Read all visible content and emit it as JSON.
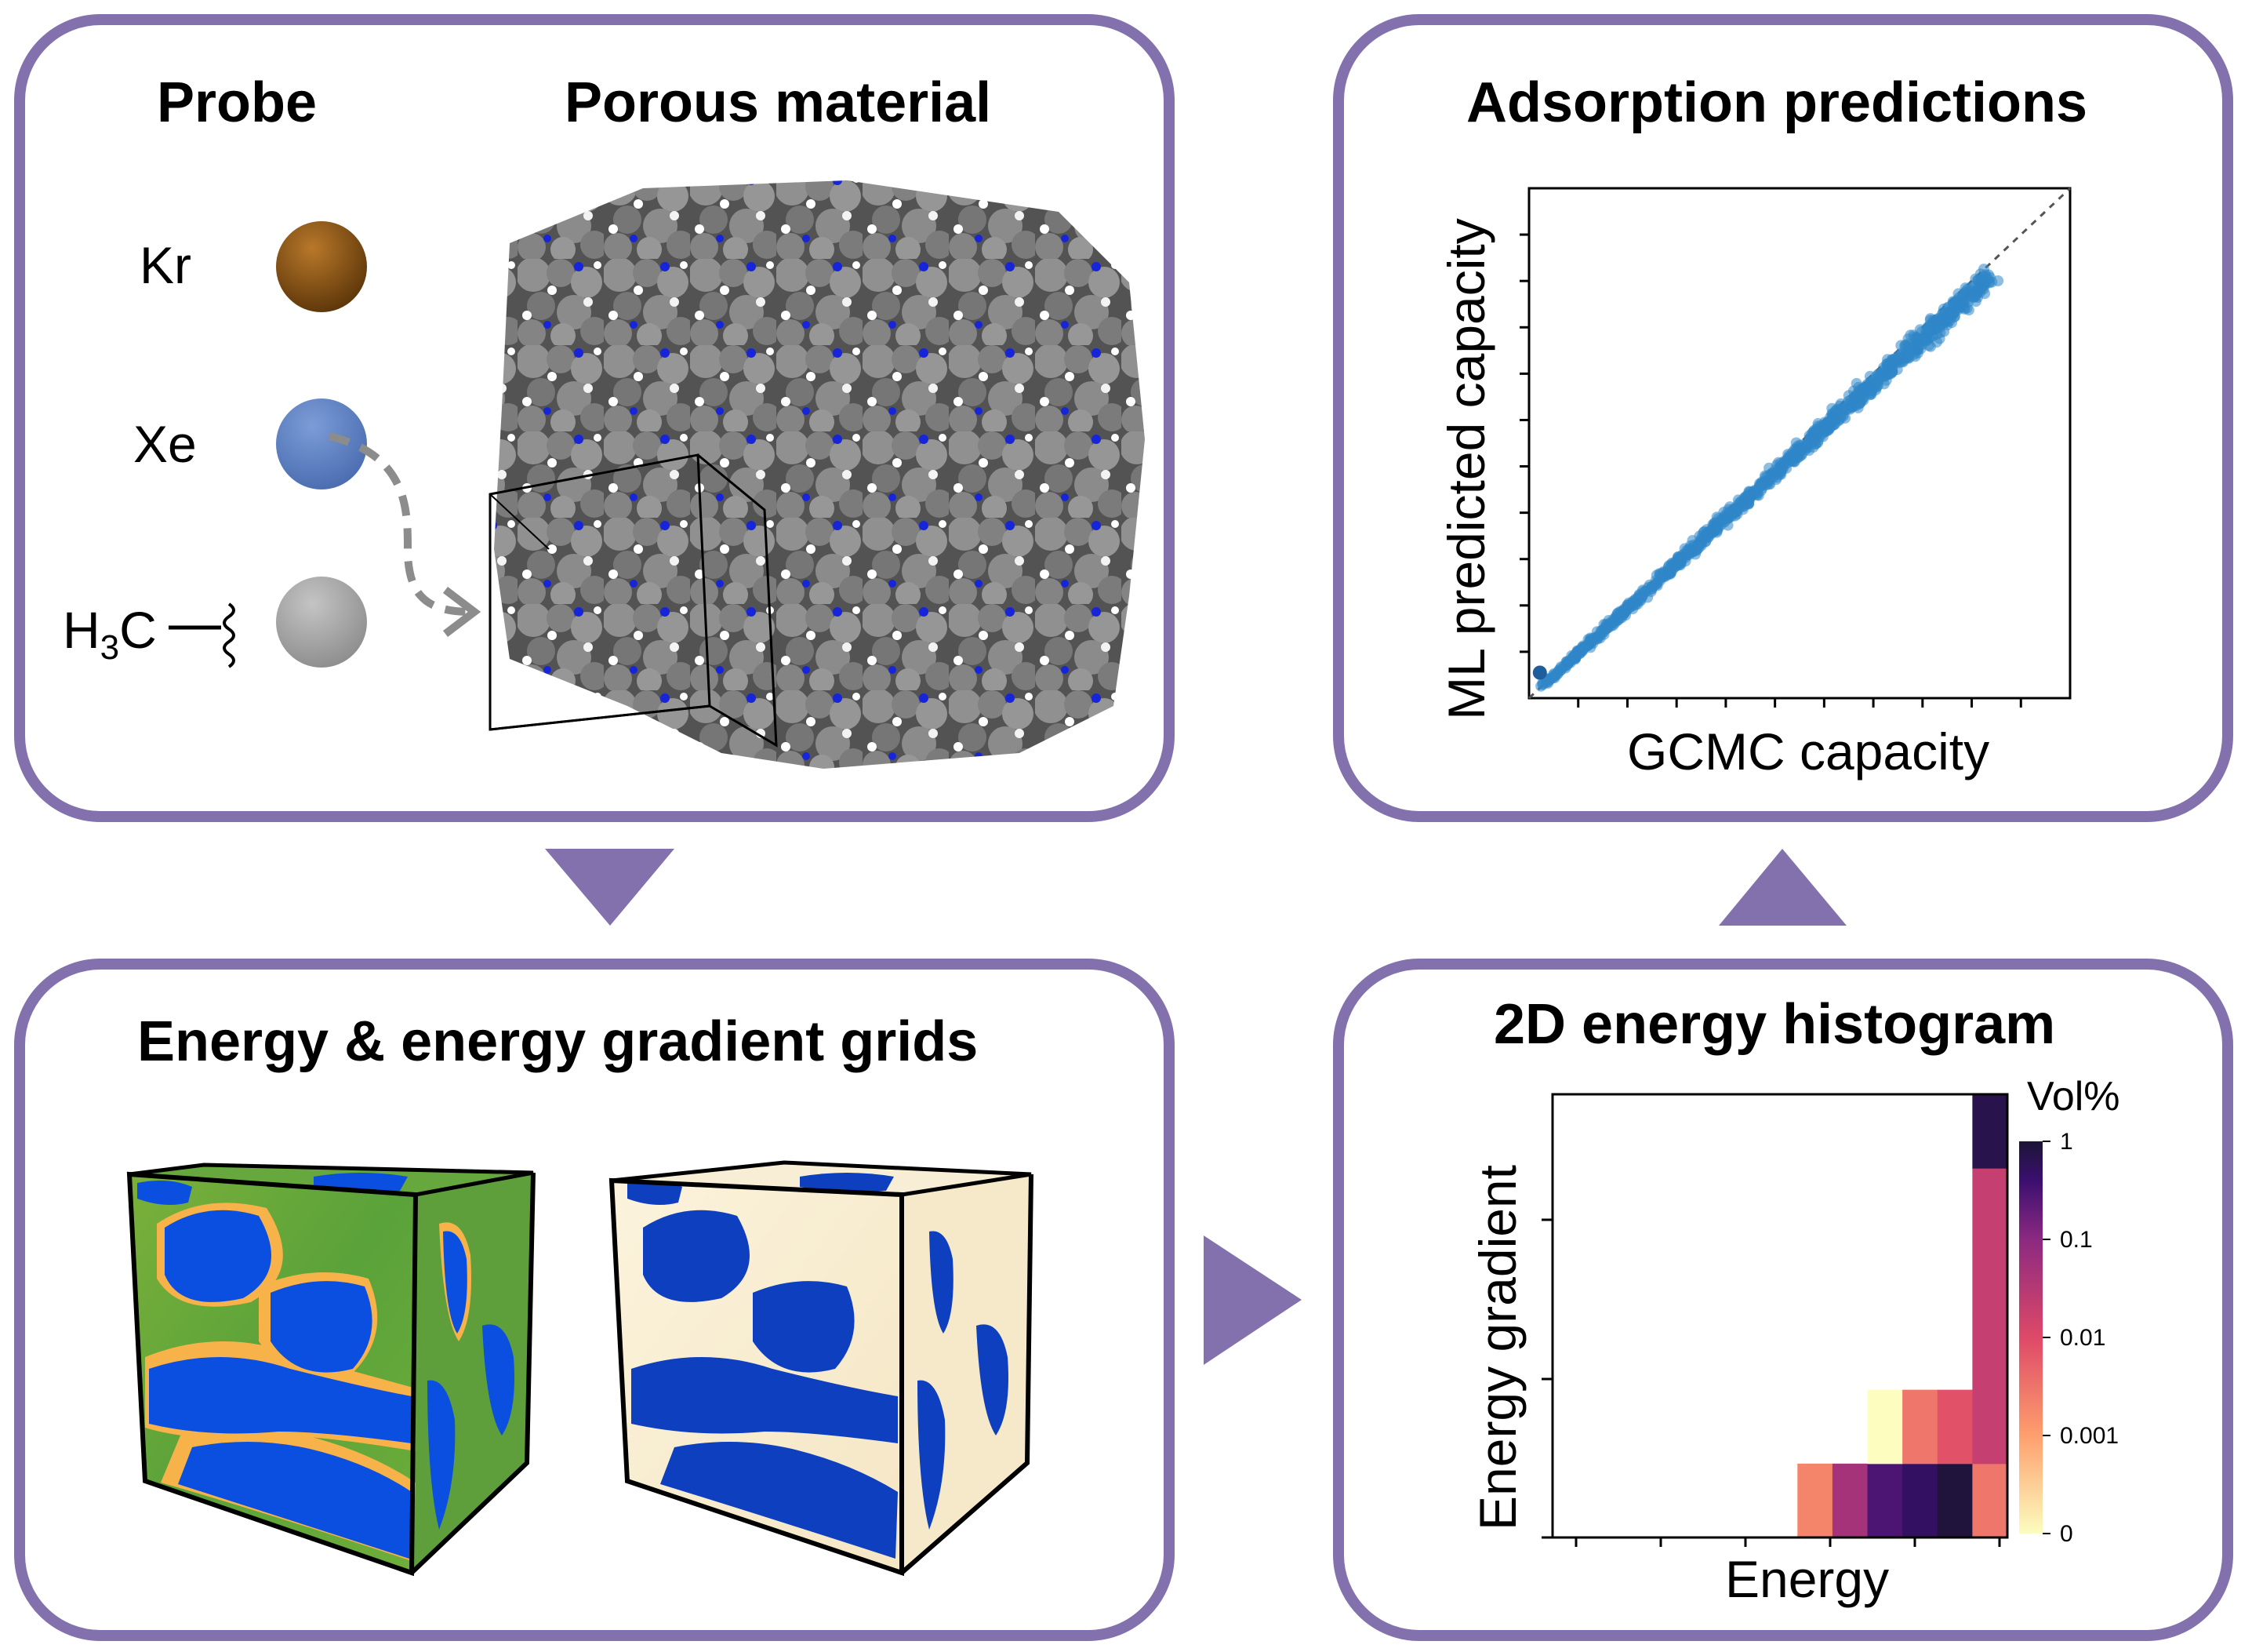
{
  "colors": {
    "panel_border": "#8371ad",
    "arrow": "#8371ad",
    "kr_probe": "#7a4a0e",
    "xe_probe": "#5b7fc0",
    "ch3_probe": "#a0a0a0",
    "pore_blue": "#0b4fe0",
    "framework_gray": "#6b6b6b",
    "scatter_point": "#2f86c8"
  },
  "panel_probe": {
    "probe_title": "Probe",
    "material_title": "Porous material",
    "probes": [
      {
        "label": "Kr",
        "icon": "sphere-icon"
      },
      {
        "label": "Xe",
        "icon": "sphere-icon"
      },
      {
        "label_main": "H",
        "label_sub": "3",
        "label_tail": "C",
        "icon": "sphere-icon"
      }
    ]
  },
  "panel_grids": {
    "title": "Energy & energy gradient grids"
  },
  "panel_histogram": {
    "title": "2D energy histogram",
    "xlabel": "Energy",
    "ylabel": "Energy gradient",
    "colorbar_title": "Vol%",
    "colorbar_ticks": [
      "1",
      "0.1",
      "0.01",
      "0.001",
      "0"
    ]
  },
  "panel_predictions": {
    "title": "Adsorption predictions",
    "xlabel": "GCMC capacity",
    "ylabel": "ML predicted capacity"
  },
  "chart_data": [
    {
      "type": "scatter",
      "title": "Adsorption predictions",
      "xlabel": "GCMC capacity",
      "ylabel": "ML predicted capacity",
      "xlim": [
        0,
        1
      ],
      "ylim": [
        0,
        1
      ],
      "reference_line": "y = x",
      "grid": false,
      "note_points": "dense cloud of ~1000 points along the diagonal from (0.02,0.05) to (0.85,0.8)"
    },
    {
      "type": "heatmap",
      "title": "2D energy histogram",
      "xlabel": "Energy",
      "ylabel": "Energy gradient",
      "colorbar": {
        "title": "Vol%",
        "ticks": [
          "1",
          "0.1",
          "0.01",
          "0.001",
          "0"
        ],
        "scale": "log"
      },
      "grid": false,
      "cells": [
        {
          "col": 7,
          "row": 0,
          "level": 0.002
        },
        {
          "col": 8,
          "row": 0,
          "level": 0.05
        },
        {
          "col": 9,
          "row": 0,
          "level": 0.3
        },
        {
          "col": 10,
          "row": 0,
          "level": 0.5
        },
        {
          "col": 11,
          "row": 0,
          "level": 0.9
        },
        {
          "col": 12,
          "row": 0,
          "level": 0.003
        },
        {
          "col": 9,
          "row": 1,
          "level": 0.0001
        },
        {
          "col": 10,
          "row": 1,
          "level": 0.003
        },
        {
          "col": 11,
          "row": 1,
          "level": 0.008
        },
        {
          "col": 12,
          "row": 1,
          "level": 0.02
        },
        {
          "col": 12,
          "row": 2,
          "level": 0.02
        },
        {
          "col": 12,
          "row": 3,
          "level": 0.02
        },
        {
          "col": 12,
          "row": 4,
          "level": 0.02
        },
        {
          "col": 12,
          "row": 5,
          "level": 0.7
        }
      ]
    }
  ]
}
